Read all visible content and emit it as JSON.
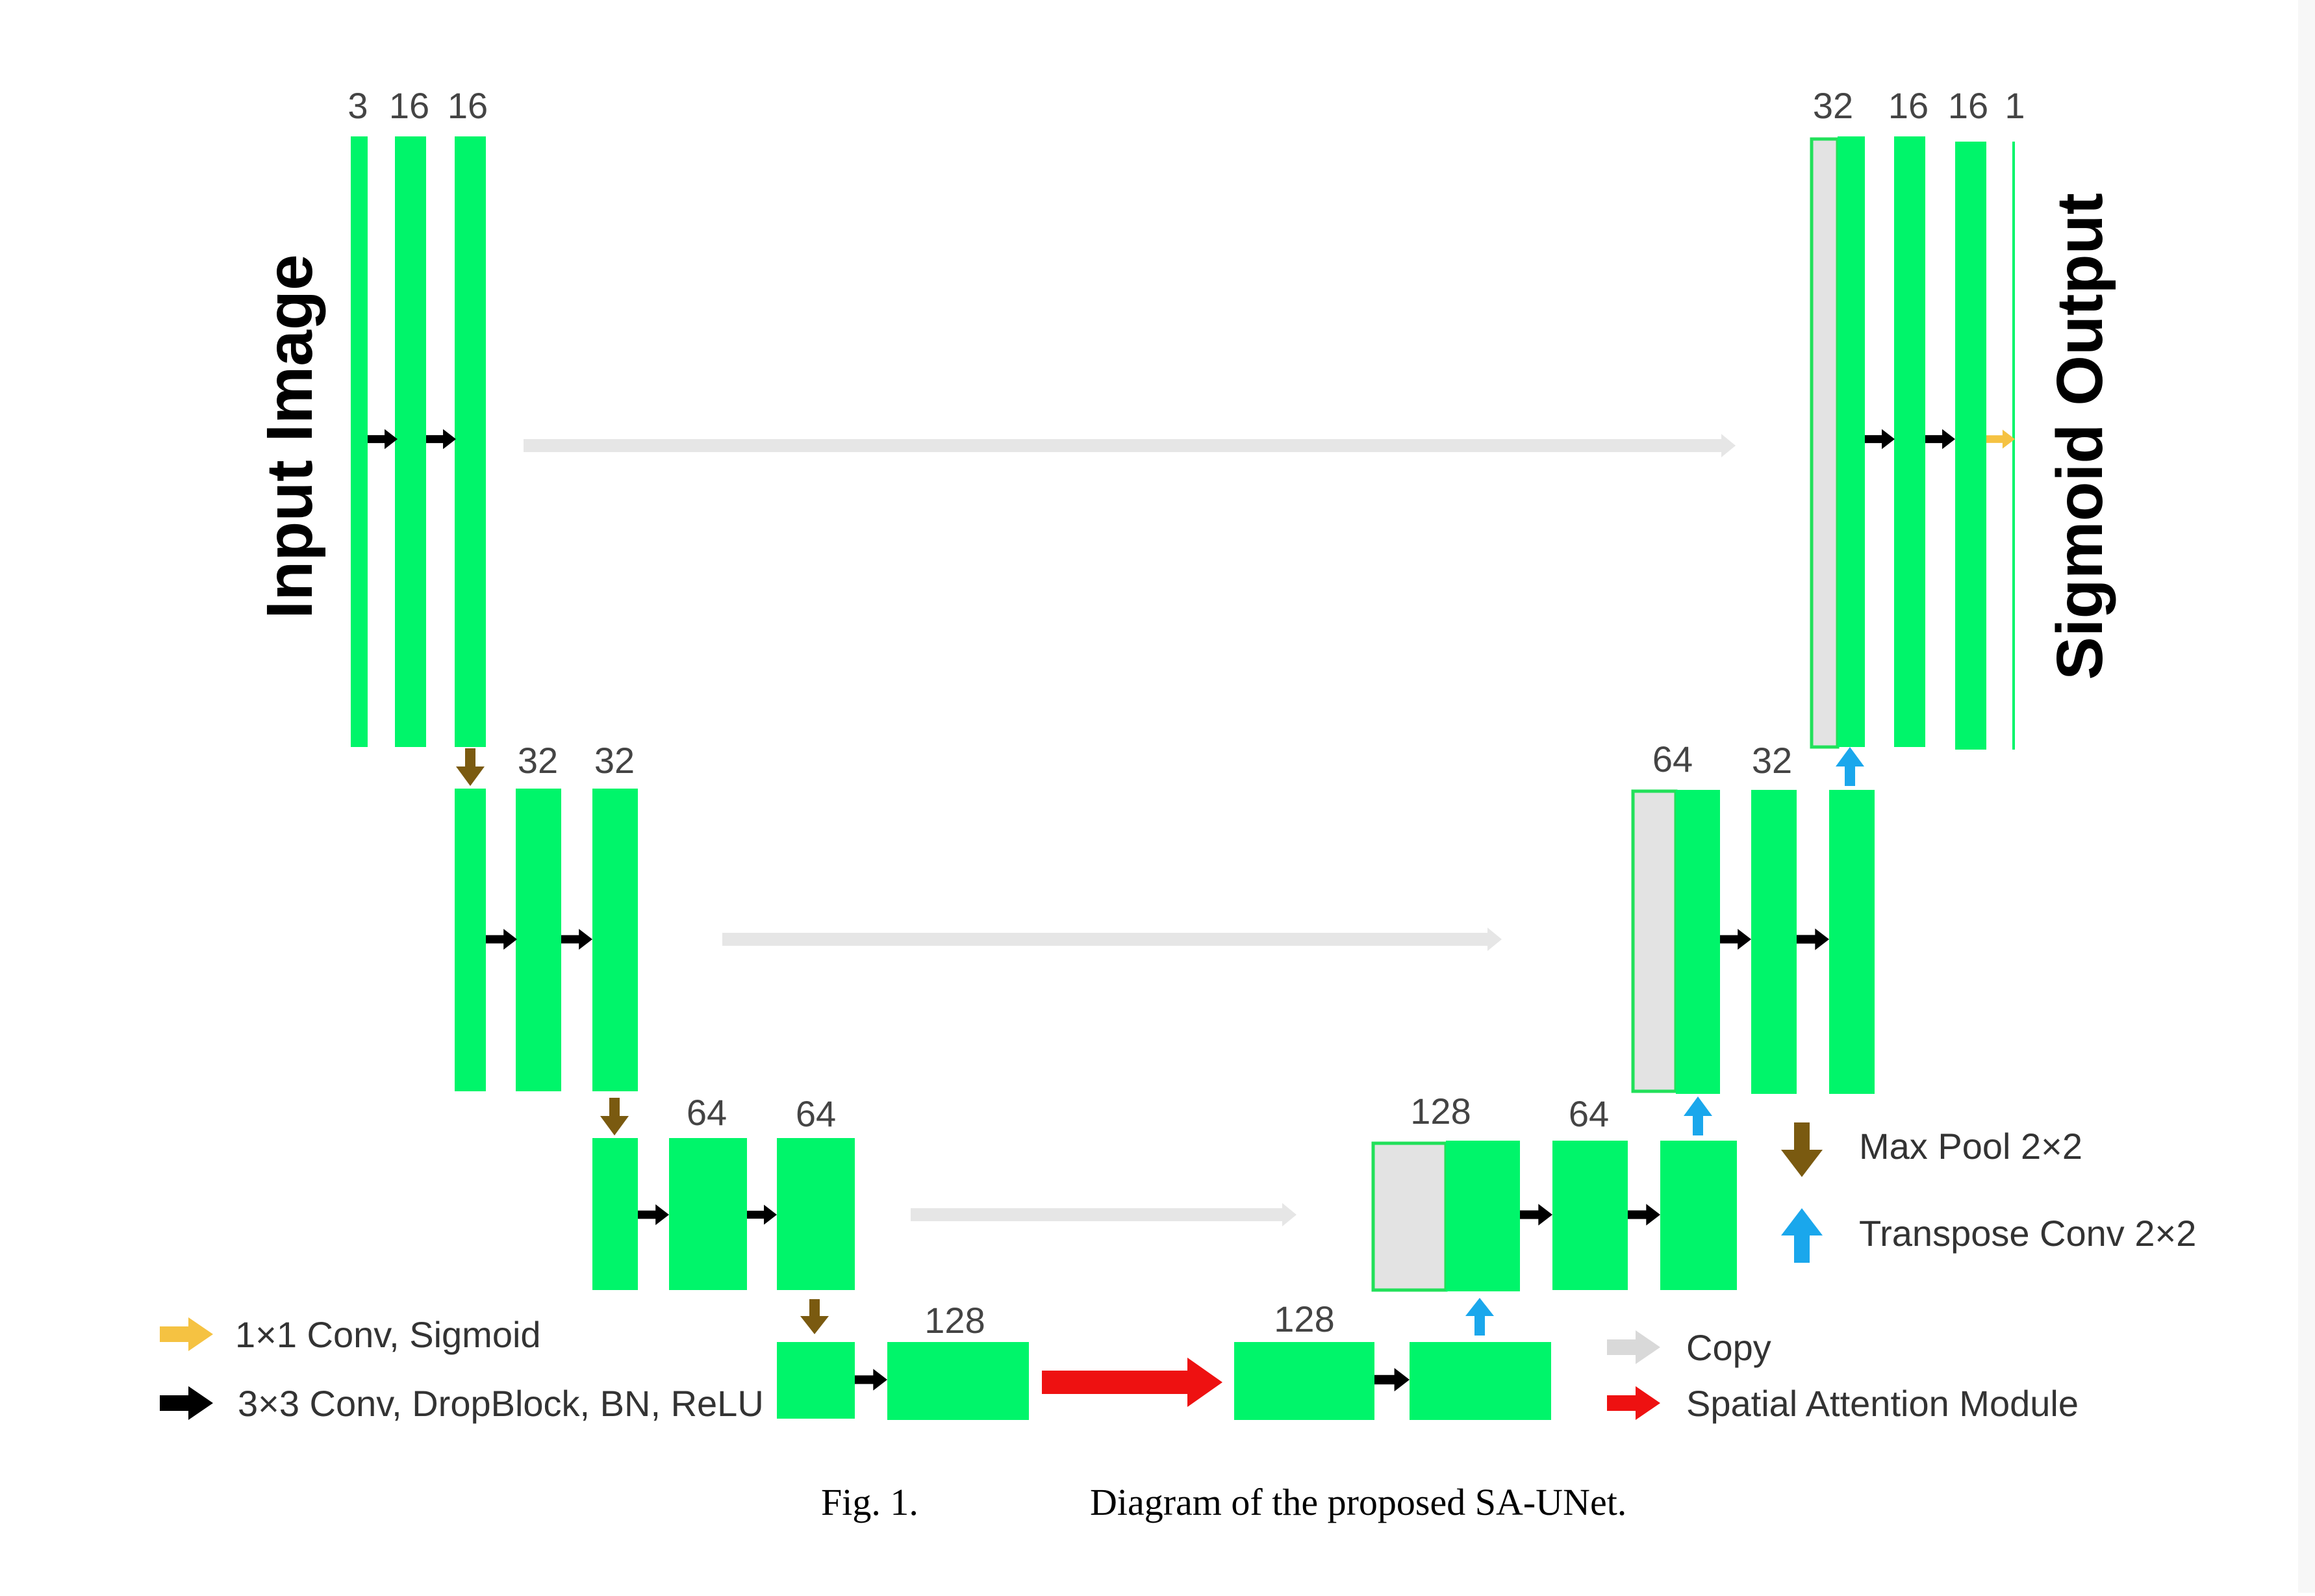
{
  "labels": {
    "input_image": "Input Image",
    "sigmoid_output": "Sigmoid Output",
    "caption_fig": "Fig. 1.",
    "caption_text": "Diagram of the proposed SA-UNet."
  },
  "channels": {
    "enc1": [
      "3",
      "16",
      "16"
    ],
    "enc2": [
      "32",
      "32"
    ],
    "enc3": [
      "64",
      "64"
    ],
    "bottom_left": "128",
    "bottom_right": "128",
    "dec3": [
      "128",
      "64"
    ],
    "dec2": [
      "64",
      "32"
    ],
    "dec1": [
      "32",
      "16",
      "16",
      "1"
    ]
  },
  "legend": {
    "conv1x1": "1×1 Conv, Sigmoid",
    "conv3x3": "3×3 Conv, DropBlock, BN, ReLU",
    "maxpool": "Max Pool 2×2",
    "transpose": "Transpose Conv 2×2",
    "copy": "Copy",
    "spatial_attention": "Spatial Attention Module"
  },
  "colors": {
    "block": "#00f56a",
    "conv_arrow": "#000000",
    "maxpool_arrow": "#7a5a10",
    "transpose_arrow": "#1aa7ec",
    "copy_arrow": "#dddddd",
    "attention_arrow": "#ee1111",
    "sigmoid_arrow": "#f5c242"
  }
}
